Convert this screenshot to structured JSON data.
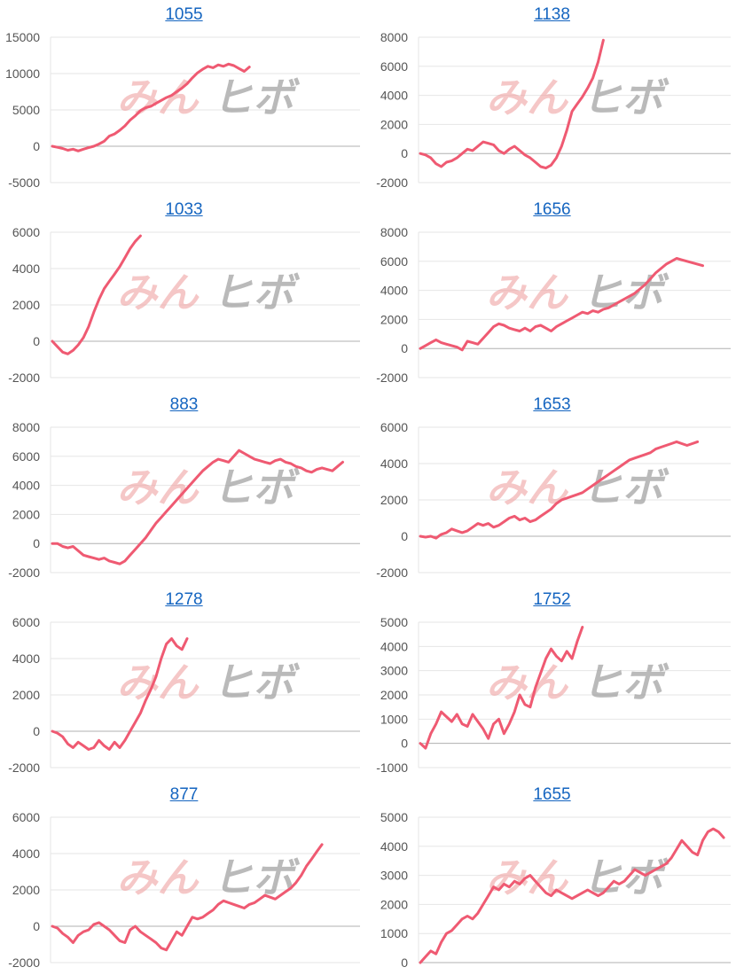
{
  "watermark": {
    "left": "みん",
    "right": "ヒボ"
  },
  "line_color": "#ef5a72",
  "title_color": "#1565c0",
  "chart_data": [
    {
      "type": "line",
      "title": "1055",
      "ylim": [
        -5000,
        15000
      ],
      "yticks": [
        15000,
        10000,
        5000,
        0,
        -5000
      ],
      "grid": true,
      "values": [
        0,
        -150,
        -300,
        -550,
        -400,
        -650,
        -400,
        -200,
        0,
        300,
        700,
        1400,
        1700,
        2200,
        2800,
        3600,
        4200,
        4900,
        5300,
        5500,
        5900,
        6300,
        6700,
        7000,
        7500,
        8000,
        8600,
        9400,
        10100,
        10600,
        11000,
        10800,
        11200,
        11000,
        11300,
        11100,
        10700,
        10300,
        10900
      ]
    },
    {
      "type": "line",
      "title": "1138",
      "ylim": [
        -2000,
        8000
      ],
      "yticks": [
        8000,
        6000,
        4000,
        2000,
        0,
        -2000
      ],
      "grid": true,
      "values": [
        0,
        -100,
        -300,
        -700,
        -900,
        -600,
        -500,
        -300,
        0,
        300,
        200,
        500,
        800,
        700,
        600,
        200,
        0,
        300,
        500,
        200,
        -100,
        -300,
        -600,
        -900,
        -1000,
        -800,
        -300,
        500,
        1600,
        2900,
        3400,
        3900,
        4500,
        5200,
        6300,
        7800
      ]
    },
    {
      "type": "line",
      "title": "1033",
      "ylim": [
        -2000,
        6000
      ],
      "yticks": [
        6000,
        4000,
        2000,
        0,
        -2000
      ],
      "grid": true,
      "values": [
        0,
        -300,
        -600,
        -700,
        -500,
        -200,
        200,
        800,
        1600,
        2300,
        2900,
        3300,
        3700,
        4100,
        4600,
        5100,
        5500,
        5800
      ]
    },
    {
      "type": "line",
      "title": "1656",
      "ylim": [
        -2000,
        8000
      ],
      "yticks": [
        8000,
        6000,
        4000,
        2000,
        0,
        -2000
      ],
      "grid": true,
      "values": [
        0,
        200,
        400,
        600,
        400,
        300,
        200,
        100,
        -100,
        500,
        400,
        300,
        700,
        1100,
        1500,
        1700,
        1600,
        1400,
        1300,
        1200,
        1400,
        1200,
        1500,
        1600,
        1400,
        1200,
        1500,
        1700,
        1900,
        2100,
        2300,
        2500,
        2400,
        2600,
        2500,
        2700,
        2800,
        3000,
        3200,
        3400,
        3600,
        3800,
        4100,
        4400,
        4800,
        5200,
        5500,
        5800,
        6000,
        6200,
        6100,
        6000,
        5900,
        5800,
        5700
      ]
    },
    {
      "type": "line",
      "title": "883",
      "ylim": [
        -2000,
        8000
      ],
      "yticks": [
        8000,
        6000,
        4000,
        2000,
        0,
        -2000
      ],
      "grid": true,
      "values": [
        0,
        0,
        -200,
        -300,
        -200,
        -500,
        -800,
        -900,
        -1000,
        -1100,
        -1000,
        -1200,
        -1300,
        -1400,
        -1200,
        -800,
        -400,
        0,
        400,
        900,
        1400,
        1800,
        2200,
        2600,
        3000,
        3400,
        3800,
        4200,
        4600,
        5000,
        5300,
        5600,
        5800,
        5700,
        5600,
        6000,
        6400,
        6200,
        6000,
        5800,
        5700,
        5600,
        5500,
        5700,
        5800,
        5600,
        5500,
        5300,
        5200,
        5000,
        4900,
        5100,
        5200,
        5100,
        5000,
        5300,
        5600
      ]
    },
    {
      "type": "line",
      "title": "1653",
      "ylim": [
        -2000,
        6000
      ],
      "yticks": [
        6000,
        4000,
        2000,
        0,
        -2000
      ],
      "grid": true,
      "values": [
        0,
        -50,
        0,
        -100,
        100,
        200,
        400,
        300,
        200,
        300,
        500,
        700,
        600,
        700,
        500,
        600,
        800,
        1000,
        1100,
        900,
        1000,
        800,
        900,
        1100,
        1300,
        1500,
        1800,
        2000,
        2100,
        2200,
        2300,
        2400,
        2600,
        2800,
        3000,
        3200,
        3400,
        3600,
        3800,
        4000,
        4200,
        4300,
        4400,
        4500,
        4600,
        4800,
        4900,
        5000,
        5100,
        5200,
        5100,
        5000,
        5100,
        5200
      ]
    },
    {
      "type": "line",
      "title": "1278",
      "ylim": [
        -2000,
        6000
      ],
      "yticks": [
        6000,
        4000,
        2000,
        0,
        -2000
      ],
      "grid": true,
      "values": [
        0,
        -100,
        -300,
        -700,
        -900,
        -600,
        -800,
        -1000,
        -900,
        -500,
        -800,
        -1000,
        -600,
        -900,
        -500,
        0,
        500,
        1000,
        1700,
        2300,
        3000,
        4000,
        4800,
        5100,
        4700,
        4500,
        5100
      ]
    },
    {
      "type": "line",
      "title": "1752",
      "ylim": [
        -1000,
        5000
      ],
      "yticks": [
        5000,
        4000,
        3000,
        2000,
        1000,
        0,
        -1000
      ],
      "grid": true,
      "values": [
        0,
        -200,
        400,
        800,
        1300,
        1100,
        900,
        1200,
        800,
        700,
        1200,
        900,
        600,
        200,
        800,
        1000,
        400,
        800,
        1300,
        2000,
        1600,
        1500,
        2300,
        2900,
        3500,
        3900,
        3600,
        3400,
        3800,
        3500,
        4200,
        4800
      ]
    },
    {
      "type": "line",
      "title": "877",
      "ylim": [
        -2000,
        6000
      ],
      "yticks": [
        6000,
        4000,
        2000,
        0,
        -2000
      ],
      "grid": true,
      "values": [
        0,
        -100,
        -400,
        -600,
        -900,
        -500,
        -300,
        -200,
        100,
        200,
        0,
        -200,
        -500,
        -800,
        -900,
        -200,
        0,
        -300,
        -500,
        -700,
        -900,
        -1200,
        -1300,
        -800,
        -300,
        -500,
        0,
        500,
        400,
        500,
        700,
        900,
        1200,
        1400,
        1300,
        1200,
        1100,
        1000,
        1200,
        1300,
        1500,
        1700,
        1600,
        1500,
        1700,
        1900,
        2100,
        2400,
        2800,
        3300,
        3700,
        4100,
        4500
      ]
    },
    {
      "type": "line",
      "title": "1655",
      "ylim": [
        0,
        5000
      ],
      "yticks": [
        5000,
        4000,
        3000,
        2000,
        1000,
        0
      ],
      "grid": true,
      "values": [
        0,
        200,
        400,
        300,
        700,
        1000,
        1100,
        1300,
        1500,
        1600,
        1500,
        1700,
        2000,
        2300,
        2600,
        2500,
        2700,
        2600,
        2800,
        2700,
        2900,
        3000,
        2800,
        2600,
        2400,
        2300,
        2500,
        2400,
        2300,
        2200,
        2300,
        2400,
        2500,
        2400,
        2300,
        2400,
        2600,
        2800,
        2700,
        2800,
        3000,
        3200,
        3100,
        3000,
        3100,
        3200,
        3300,
        3400,
        3600,
        3900,
        4200,
        4000,
        3800,
        3700,
        4200,
        4500,
        4600,
        4500,
        4300
      ]
    }
  ]
}
